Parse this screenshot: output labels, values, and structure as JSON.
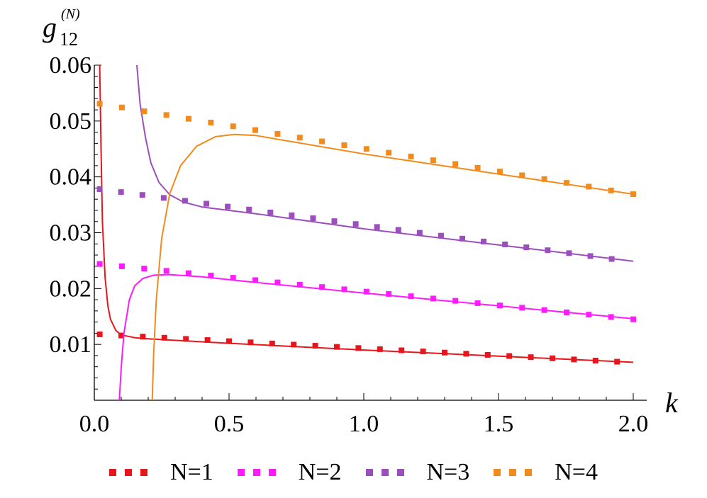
{
  "chart_data": {
    "type": "line",
    "ylabel": "g",
    "ylabel_sub": "12",
    "ylabel_sup": "(N)",
    "xlabel": "k",
    "xlim": [
      0,
      2.05
    ],
    "ylim": [
      0,
      0.06
    ],
    "xticks": [
      {
        "value": 0.0,
        "label": "0.0"
      },
      {
        "value": 0.5,
        "label": "0.5"
      },
      {
        "value": 1.0,
        "label": "1.0"
      },
      {
        "value": 1.5,
        "label": "1.5"
      },
      {
        "value": 2.0,
        "label": "2.0"
      }
    ],
    "yticks": [
      {
        "value": 0.01,
        "label": "0.01"
      },
      {
        "value": 0.02,
        "label": "0.02"
      },
      {
        "value": 0.03,
        "label": "0.03"
      },
      {
        "value": 0.04,
        "label": "0.04"
      },
      {
        "value": 0.05,
        "label": "0.05"
      },
      {
        "value": 0.06,
        "label": "0.06"
      }
    ],
    "legend_position": "bottom",
    "series": [
      {
        "name": "N=1",
        "color": "#e8161c",
        "dotted": {
          "x_start": 0.02,
          "x_end": 1.94,
          "y_start": 0.0118,
          "y_end": 0.0069
        },
        "solid": [
          [
            0.02,
            0.06
          ],
          [
            0.025,
            0.045
          ],
          [
            0.03,
            0.032
          ],
          [
            0.04,
            0.022
          ],
          [
            0.05,
            0.017
          ],
          [
            0.06,
            0.0145
          ],
          [
            0.08,
            0.0125
          ],
          [
            0.1,
            0.0117
          ],
          [
            0.15,
            0.0112
          ],
          [
            0.2,
            0.011
          ],
          [
            0.5,
            0.0102
          ],
          [
            1.0,
            0.009
          ],
          [
            1.5,
            0.0079
          ],
          [
            2.0,
            0.0068
          ]
        ]
      },
      {
        "name": "N=2",
        "color": "#ff1aff",
        "dotted": {
          "x_start": 0.02,
          "x_end": 2.0,
          "y_start": 0.0244,
          "y_end": 0.0145
        },
        "solid": [
          [
            0.093,
            0.0
          ],
          [
            0.1,
            0.006
          ],
          [
            0.11,
            0.012
          ],
          [
            0.13,
            0.018
          ],
          [
            0.15,
            0.0205
          ],
          [
            0.18,
            0.0218
          ],
          [
            0.22,
            0.0224
          ],
          [
            0.28,
            0.0225
          ],
          [
            0.4,
            0.0221
          ],
          [
            0.6,
            0.0211
          ],
          [
            1.0,
            0.0192
          ],
          [
            1.5,
            0.0169
          ],
          [
            2.0,
            0.0146
          ]
        ]
      },
      {
        "name": "N=3",
        "color": "#9b4fbd",
        "dotted": {
          "x_start": 0.02,
          "x_end": 1.92,
          "y_start": 0.0378,
          "y_end": 0.0253
        },
        "solid": [
          [
            0.158,
            0.06
          ],
          [
            0.17,
            0.053
          ],
          [
            0.19,
            0.047
          ],
          [
            0.21,
            0.0425
          ],
          [
            0.24,
            0.039
          ],
          [
            0.28,
            0.0368
          ],
          [
            0.33,
            0.0355
          ],
          [
            0.4,
            0.0346
          ],
          [
            0.6,
            0.0334
          ],
          [
            1.0,
            0.0307
          ],
          [
            1.5,
            0.0278
          ],
          [
            2.0,
            0.0249
          ]
        ]
      },
      {
        "name": "N=4",
        "color": "#f28a1d",
        "dotted": {
          "x_start": 0.02,
          "x_end": 2.0,
          "y_start": 0.0531,
          "y_end": 0.0369
        },
        "solid": [
          [
            0.215,
            0.0
          ],
          [
            0.22,
            0.008
          ],
          [
            0.23,
            0.018
          ],
          [
            0.25,
            0.029
          ],
          [
            0.28,
            0.037
          ],
          [
            0.32,
            0.042
          ],
          [
            0.38,
            0.0455
          ],
          [
            0.45,
            0.0472
          ],
          [
            0.52,
            0.0476
          ],
          [
            0.6,
            0.0474
          ],
          [
            1.0,
            0.0441
          ],
          [
            1.5,
            0.0405
          ],
          [
            2.0,
            0.0369
          ]
        ]
      }
    ]
  }
}
